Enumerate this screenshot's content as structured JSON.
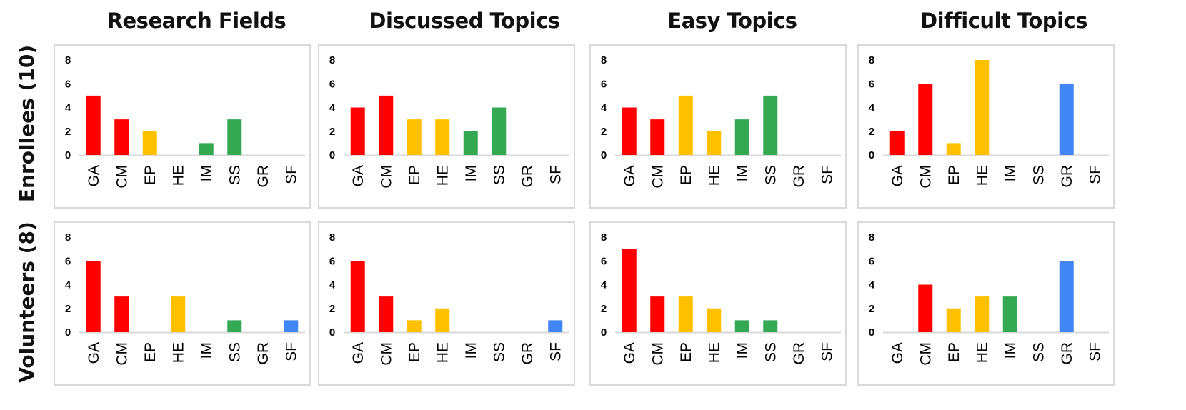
{
  "column_titles": [
    "Research Fields",
    "Discussed Topics",
    "Easy Topics",
    "Difficult Topics"
  ],
  "row_labels": [
    "Enrollees (10)",
    "Volunteers (8)"
  ],
  "colors": {
    "red": "#ff0000",
    "yellow": "#ffc000",
    "green": "#34a853",
    "blue": "#4285f4",
    "axis": "#d9d9d9"
  },
  "chart_data": [
    {
      "type": "bar",
      "row": "Enrollees (10)",
      "column": "Research Fields",
      "categories": [
        "GA",
        "CM",
        "EP",
        "HE",
        "IM",
        "SS",
        "GR",
        "SF"
      ],
      "values": [
        5,
        3,
        2,
        0,
        1,
        3,
        0,
        0
      ],
      "ylim": [
        0,
        8
      ],
      "yticks": [
        0,
        2,
        4,
        6,
        8
      ]
    },
    {
      "type": "bar",
      "row": "Enrollees (10)",
      "column": "Discussed Topics",
      "categories": [
        "GA",
        "CM",
        "EP",
        "HE",
        "IM",
        "SS",
        "GR",
        "SF"
      ],
      "values": [
        4,
        5,
        3,
        3,
        2,
        4,
        0,
        0
      ],
      "ylim": [
        0,
        8
      ],
      "yticks": [
        0,
        2,
        4,
        6,
        8
      ]
    },
    {
      "type": "bar",
      "row": "Enrollees (10)",
      "column": "Easy Topics",
      "categories": [
        "GA",
        "CM",
        "EP",
        "HE",
        "IM",
        "SS",
        "GR",
        "SF"
      ],
      "values": [
        4,
        3,
        5,
        2,
        3,
        5,
        0,
        0
      ],
      "ylim": [
        0,
        8
      ],
      "yticks": [
        0,
        2,
        4,
        6,
        8
      ]
    },
    {
      "type": "bar",
      "row": "Enrollees (10)",
      "column": "Difficult Topics",
      "categories": [
        "GA",
        "CM",
        "EP",
        "HE",
        "IM",
        "SS",
        "GR",
        "SF"
      ],
      "values": [
        2,
        6,
        1,
        8,
        0,
        0,
        6,
        0
      ],
      "ylim": [
        0,
        8
      ],
      "yticks": [
        0,
        2,
        4,
        6,
        8
      ]
    },
    {
      "type": "bar",
      "row": "Volunteers (8)",
      "column": "Research Fields",
      "categories": [
        "GA",
        "CM",
        "EP",
        "HE",
        "IM",
        "SS",
        "GR",
        "SF"
      ],
      "values": [
        6,
        3,
        0,
        3,
        0,
        1,
        0,
        1
      ],
      "ylim": [
        0,
        8
      ],
      "yticks": [
        0,
        2,
        4,
        6,
        8
      ]
    },
    {
      "type": "bar",
      "row": "Volunteers (8)",
      "column": "Discussed Topics",
      "categories": [
        "GA",
        "CM",
        "EP",
        "HE",
        "IM",
        "SS",
        "GR",
        "SF"
      ],
      "values": [
        6,
        3,
        1,
        2,
        0,
        0,
        0,
        1
      ],
      "ylim": [
        0,
        8
      ],
      "yticks": [
        0,
        2,
        4,
        6,
        8
      ]
    },
    {
      "type": "bar",
      "row": "Volunteers (8)",
      "column": "Easy Topics",
      "categories": [
        "GA",
        "CM",
        "EP",
        "HE",
        "IM",
        "SS",
        "GR",
        "SF"
      ],
      "values": [
        7,
        3,
        3,
        2,
        1,
        1,
        0,
        0
      ],
      "ylim": [
        0,
        8
      ],
      "yticks": [
        0,
        2,
        4,
        6,
        8
      ]
    },
    {
      "type": "bar",
      "row": "Volunteers (8)",
      "column": "Difficult Topics",
      "categories": [
        "GA",
        "CM",
        "EP",
        "HE",
        "IM",
        "SS",
        "GR",
        "SF"
      ],
      "values": [
        0,
        4,
        2,
        3,
        3,
        0,
        6,
        0
      ],
      "ylim": [
        0,
        8
      ],
      "yticks": [
        0,
        2,
        4,
        6,
        8
      ]
    }
  ],
  "category_colors": {
    "GA": "red",
    "CM": "red",
    "EP": "yellow",
    "HE": "yellow",
    "IM": "green",
    "SS": "green",
    "GR": "blue",
    "SF": "blue"
  }
}
